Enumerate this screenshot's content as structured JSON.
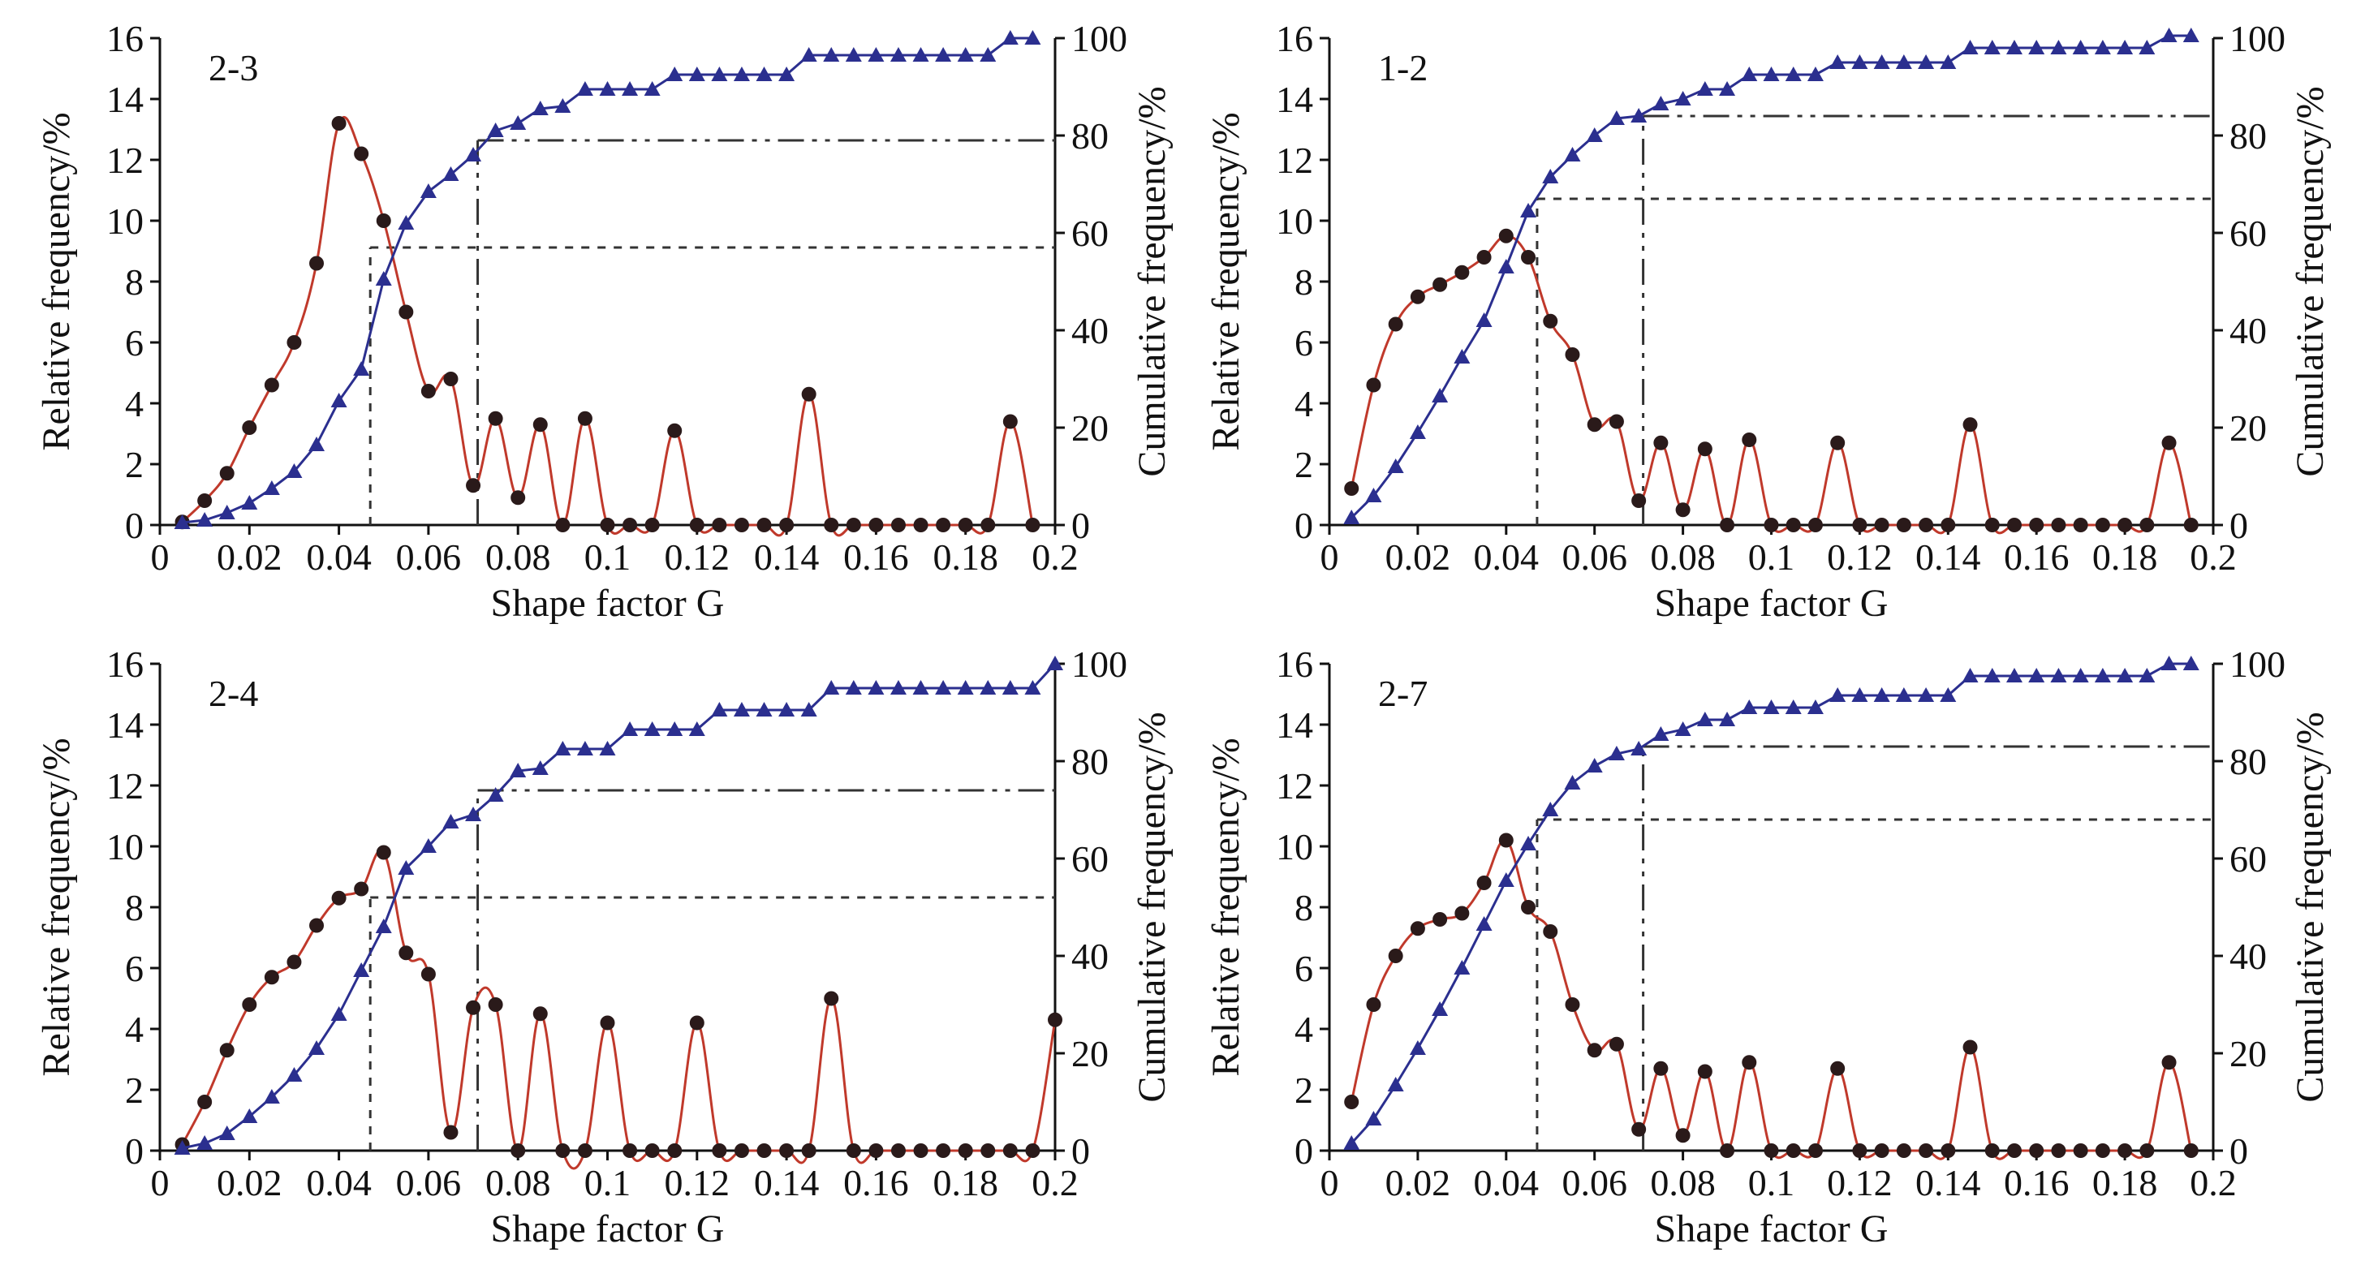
{
  "figure": {
    "colors": {
      "relative": "#c0392b",
      "cumulative": "#2b2f8f",
      "axis": "#111111",
      "reference": "#333333"
    }
  },
  "chart_data": [
    {
      "type": "line",
      "panel": "2-3",
      "xlabel": "Shape factor G",
      "ylabel": "Relative frequency/%",
      "y2label": "Cumulative frequency/%",
      "xlim": [
        0,
        0.2
      ],
      "ylim": [
        0,
        16
      ],
      "y2lim": [
        0,
        100
      ],
      "xticks": [
        0,
        0.02,
        0.04,
        0.06,
        0.08,
        0.1,
        0.12,
        0.14,
        0.16,
        0.18,
        0.2
      ],
      "xtick_labels": [
        "0",
        "0.02",
        "0.04",
        "0.06",
        "0.08",
        "0.1",
        "0.12",
        "0.14",
        "0.16",
        "0.18",
        "0.2"
      ],
      "yticks": [
        0,
        2,
        4,
        6,
        8,
        10,
        12,
        14,
        16
      ],
      "y2ticks": [
        0,
        20,
        40,
        60,
        80,
        100
      ],
      "x": [
        0.005,
        0.01,
        0.015,
        0.02,
        0.025,
        0.03,
        0.035,
        0.04,
        0.045,
        0.05,
        0.055,
        0.06,
        0.065,
        0.07,
        0.075,
        0.08,
        0.085,
        0.09,
        0.095,
        0.1,
        0.105,
        0.11,
        0.115,
        0.12,
        0.125,
        0.13,
        0.135,
        0.14,
        0.145,
        0.15,
        0.155,
        0.16,
        0.165,
        0.17,
        0.175,
        0.18,
        0.185,
        0.19,
        0.195
      ],
      "series": [
        {
          "name": "Relative frequency",
          "axis": "left",
          "marker": "circle",
          "values": [
            0.1,
            0.8,
            1.7,
            3.2,
            4.6,
            6.0,
            8.6,
            13.2,
            12.2,
            10.0,
            7.0,
            4.4,
            4.8,
            1.3,
            3.5,
            0.9,
            3.3,
            0,
            3.5,
            0,
            0,
            0,
            3.1,
            0,
            0,
            0,
            0,
            0,
            4.3,
            0,
            0,
            0,
            0,
            0,
            0,
            0,
            0,
            3.4,
            0
          ]
        },
        {
          "name": "Cumulative frequency",
          "axis": "right",
          "marker": "triangle",
          "values": [
            0.5,
            1.0,
            2.5,
            4.5,
            7.5,
            11.0,
            16.5,
            25.5,
            32.0,
            50.5,
            62.0,
            68.5,
            72.0,
            76.0,
            81.0,
            82.5,
            85.5,
            86.0,
            89.5,
            89.5,
            89.5,
            89.5,
            92.5,
            92.5,
            92.5,
            92.5,
            92.5,
            92.5,
            96.5,
            96.5,
            96.5,
            96.5,
            96.5,
            96.5,
            96.5,
            96.5,
            96.5,
            100.0,
            100.0
          ]
        }
      ],
      "reference_lines": [
        {
          "x": 0.047,
          "y2": 57,
          "style": "dotted"
        },
        {
          "x": 0.071,
          "y2": 79,
          "style": "dash-dot"
        }
      ]
    },
    {
      "type": "line",
      "panel": "1-2",
      "xlabel": "Shape factor G",
      "ylabel": "Relative frequency/%",
      "y2label": "Cumulative frequency/%",
      "xlim": [
        0,
        0.2
      ],
      "ylim": [
        0,
        16
      ],
      "y2lim": [
        0,
        100
      ],
      "xticks": [
        0,
        0.02,
        0.04,
        0.06,
        0.08,
        0.1,
        0.12,
        0.14,
        0.16,
        0.18,
        0.2
      ],
      "xtick_labels": [
        "0",
        "0.02",
        "0.04",
        "0.06",
        "0.08",
        "0.1",
        "0.12",
        "0.14",
        "0.16",
        "0.18",
        "0.2"
      ],
      "yticks": [
        0,
        2,
        4,
        6,
        8,
        10,
        12,
        14,
        16
      ],
      "y2ticks": [
        0,
        20,
        40,
        60,
        80,
        100
      ],
      "x": [
        0.005,
        0.01,
        0.015,
        0.02,
        0.025,
        0.03,
        0.035,
        0.04,
        0.045,
        0.05,
        0.055,
        0.06,
        0.065,
        0.07,
        0.075,
        0.08,
        0.085,
        0.09,
        0.095,
        0.1,
        0.105,
        0.11,
        0.115,
        0.12,
        0.125,
        0.13,
        0.135,
        0.14,
        0.145,
        0.15,
        0.155,
        0.16,
        0.165,
        0.17,
        0.175,
        0.18,
        0.185,
        0.19,
        0.195
      ],
      "series": [
        {
          "name": "Relative frequency",
          "axis": "left",
          "marker": "circle",
          "values": [
            1.2,
            4.6,
            6.6,
            7.5,
            7.9,
            8.3,
            8.8,
            9.5,
            8.8,
            6.7,
            5.6,
            3.3,
            3.4,
            0.8,
            2.7,
            0.5,
            2.5,
            0,
            2.8,
            0,
            0,
            0,
            2.7,
            0,
            0,
            0,
            0,
            0,
            3.3,
            0,
            0,
            0,
            0,
            0,
            0,
            0,
            0,
            2.7,
            0
          ]
        },
        {
          "name": "Cumulative frequency",
          "axis": "right",
          "marker": "triangle",
          "values": [
            1.5,
            6.0,
            12.0,
            19.0,
            26.5,
            34.5,
            42.0,
            53.0,
            64.5,
            71.5,
            76.0,
            80.0,
            83.5,
            84.0,
            86.5,
            87.5,
            89.5,
            89.5,
            92.5,
            92.5,
            92.5,
            92.5,
            95.0,
            95.0,
            95.0,
            95.0,
            95.0,
            95.0,
            98.0,
            98.0,
            98.0,
            98.0,
            98.0,
            98.0,
            98.0,
            98.0,
            98.0,
            100.5,
            100.5
          ]
        }
      ],
      "reference_lines": [
        {
          "x": 0.047,
          "y2": 67,
          "style": "dotted"
        },
        {
          "x": 0.071,
          "y2": 84,
          "style": "dash-dot"
        }
      ]
    },
    {
      "type": "line",
      "panel": "2-4",
      "xlabel": "Shape factor G",
      "ylabel": "Relative frequency/%",
      "y2label": "Cumulative frequency/%",
      "xlim": [
        0,
        0.2
      ],
      "ylim": [
        0,
        16
      ],
      "y2lim": [
        0,
        100
      ],
      "xticks": [
        0,
        0.02,
        0.04,
        0.06,
        0.08,
        0.1,
        0.12,
        0.14,
        0.16,
        0.18,
        0.2
      ],
      "xtick_labels": [
        "0",
        "0.02",
        "0.04",
        "0.06",
        "0.08",
        "0.1",
        "0.12",
        "0.14",
        "0.16",
        "0.18",
        "0.2"
      ],
      "yticks": [
        0,
        2,
        4,
        6,
        8,
        10,
        12,
        14,
        16
      ],
      "y2ticks": [
        0,
        20,
        40,
        60,
        80,
        100
      ],
      "x": [
        0.005,
        0.01,
        0.015,
        0.02,
        0.025,
        0.03,
        0.035,
        0.04,
        0.045,
        0.05,
        0.055,
        0.06,
        0.065,
        0.07,
        0.075,
        0.08,
        0.085,
        0.09,
        0.095,
        0.1,
        0.105,
        0.11,
        0.115,
        0.12,
        0.125,
        0.13,
        0.135,
        0.14,
        0.145,
        0.15,
        0.155,
        0.16,
        0.165,
        0.17,
        0.175,
        0.18,
        0.185,
        0.19,
        0.195,
        0.2
      ],
      "series": [
        {
          "name": "Relative frequency",
          "axis": "left",
          "marker": "circle",
          "values": [
            0.2,
            1.6,
            3.3,
            4.8,
            5.7,
            6.2,
            7.4,
            8.3,
            8.6,
            9.8,
            6.5,
            5.8,
            0.6,
            4.7,
            4.8,
            0,
            4.5,
            0,
            0,
            4.2,
            0,
            0,
            0,
            4.2,
            0,
            0,
            0,
            0,
            0,
            5.0,
            0,
            0,
            0,
            0,
            0,
            0,
            0,
            0,
            0,
            4.3
          ]
        },
        {
          "name": "Cumulative frequency",
          "axis": "right",
          "marker": "triangle",
          "values": [
            0.5,
            1.5,
            3.5,
            7.0,
            11.0,
            15.5,
            21.0,
            28.0,
            37.0,
            46.0,
            58.0,
            62.5,
            67.5,
            69.0,
            73.0,
            78.0,
            78.5,
            82.5,
            82.5,
            82.5,
            86.5,
            86.5,
            86.5,
            86.5,
            90.5,
            90.5,
            90.5,
            90.5,
            90.5,
            95.0,
            95.0,
            95.0,
            95.0,
            95.0,
            95.0,
            95.0,
            95.0,
            95.0,
            95.0,
            100.0
          ]
        }
      ],
      "reference_lines": [
        {
          "x": 0.047,
          "y2": 52,
          "style": "dotted"
        },
        {
          "x": 0.071,
          "y2": 74,
          "style": "dash-dot"
        }
      ]
    },
    {
      "type": "line",
      "panel": "2-7",
      "xlabel": "Shape factor G",
      "ylabel": "Relative frequency/%",
      "y2label": "Cumulative frequency/%",
      "xlim": [
        0,
        0.2
      ],
      "ylim": [
        0,
        16
      ],
      "y2lim": [
        0,
        100
      ],
      "xticks": [
        0,
        0.02,
        0.04,
        0.06,
        0.08,
        0.1,
        0.12,
        0.14,
        0.16,
        0.18,
        0.2
      ],
      "xtick_labels": [
        "0",
        "0.02",
        "0.04",
        "0.06",
        "0.08",
        "0.1",
        "0.12",
        "0.14",
        "0.16",
        "0.18",
        "0.2"
      ],
      "yticks": [
        0,
        2,
        4,
        6,
        8,
        10,
        12,
        14,
        16
      ],
      "y2ticks": [
        0,
        20,
        40,
        60,
        80,
        100
      ],
      "x": [
        0.005,
        0.01,
        0.015,
        0.02,
        0.025,
        0.03,
        0.035,
        0.04,
        0.045,
        0.05,
        0.055,
        0.06,
        0.065,
        0.07,
        0.075,
        0.08,
        0.085,
        0.09,
        0.095,
        0.1,
        0.105,
        0.11,
        0.115,
        0.12,
        0.125,
        0.13,
        0.135,
        0.14,
        0.145,
        0.15,
        0.155,
        0.16,
        0.165,
        0.17,
        0.175,
        0.18,
        0.185,
        0.19,
        0.195
      ],
      "series": [
        {
          "name": "Relative frequency",
          "axis": "left",
          "marker": "circle",
          "values": [
            1.6,
            4.8,
            6.4,
            7.3,
            7.6,
            7.8,
            8.8,
            10.2,
            8.0,
            7.2,
            4.8,
            3.3,
            3.5,
            0.7,
            2.7,
            0.5,
            2.6,
            0,
            2.9,
            0,
            0,
            0,
            2.7,
            0,
            0,
            0,
            0,
            0,
            3.4,
            0,
            0,
            0,
            0,
            0,
            0,
            0,
            0,
            2.9,
            0
          ]
        },
        {
          "name": "Cumulative frequency",
          "axis": "right",
          "marker": "triangle",
          "values": [
            1.5,
            6.5,
            13.5,
            21.0,
            29.0,
            37.5,
            46.5,
            55.5,
            63.0,
            70.0,
            75.5,
            79.0,
            81.5,
            82.5,
            85.5,
            86.5,
            88.5,
            88.5,
            91.0,
            91.0,
            91.0,
            91.0,
            93.5,
            93.5,
            93.5,
            93.5,
            93.5,
            93.5,
            97.5,
            97.5,
            97.5,
            97.5,
            97.5,
            97.5,
            97.5,
            97.5,
            97.5,
            100.0,
            100.0
          ]
        }
      ],
      "reference_lines": [
        {
          "x": 0.047,
          "y2": 68,
          "style": "dotted"
        },
        {
          "x": 0.071,
          "y2": 83,
          "style": "dash-dot"
        }
      ]
    }
  ]
}
